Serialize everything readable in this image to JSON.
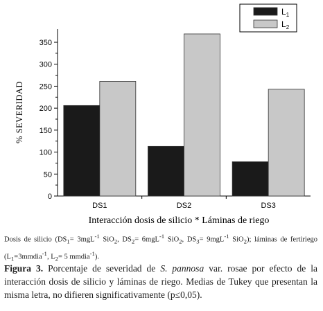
{
  "chart_data": {
    "type": "bar",
    "categories": [
      "DS1",
      "DS2",
      "DS3"
    ],
    "series": [
      {
        "name": "L1",
        "values": [
          206,
          113,
          78
        ],
        "color": "#1a1a1a"
      },
      {
        "name": "L2",
        "values": [
          261,
          369,
          243
        ],
        "color": "#c8c8c8"
      }
    ],
    "ylabel": "% SEVERIDAD",
    "xlabel": "Interacción dosis de silicio * Láminas de riego",
    "ylim": [
      0,
      380
    ],
    "yticks": [
      0,
      50,
      100,
      150,
      200,
      250,
      300,
      350
    ],
    "legend": "top-right",
    "grid": false
  },
  "legend_labels": [
    {
      "main": "L",
      "sub": "1"
    },
    {
      "main": "L",
      "sub": "2"
    }
  ],
  "note": {
    "t1": "Dosis de silicio (DS",
    "s1": "1",
    "t2": "= 3mgL",
    "e1": "-1",
    "t3": " SiO",
    "s2": "2",
    "t4": ", DS",
    "s3": "2",
    "t5": "= 6mgL",
    "e2": "-1",
    "t6": " SiO",
    "s4": "2",
    "t7": ", DS",
    "s5": "3",
    "t8": "= 9mgL",
    "e3": "-1",
    "t9": " SiO",
    "s6": "2",
    "t10": "); láminas de fertiriego (L",
    "s7": "1",
    "t11": "=3mmdia",
    "e4": "-1",
    "t12": ", L",
    "s8": "2",
    "t13": "= 5 mmdia",
    "e5": "-1",
    "t14": ")."
  },
  "caption": {
    "label": "Figura 3.",
    "part1": " Porcentaje de severidad de ",
    "species": "S. pannosa",
    "part2": " var. rosae por efecto de la interacción dosis de silicio y láminas de riego. Medias de Tukey que presentan la misma letra, no difieren significativamente (p≤0,05)."
  }
}
